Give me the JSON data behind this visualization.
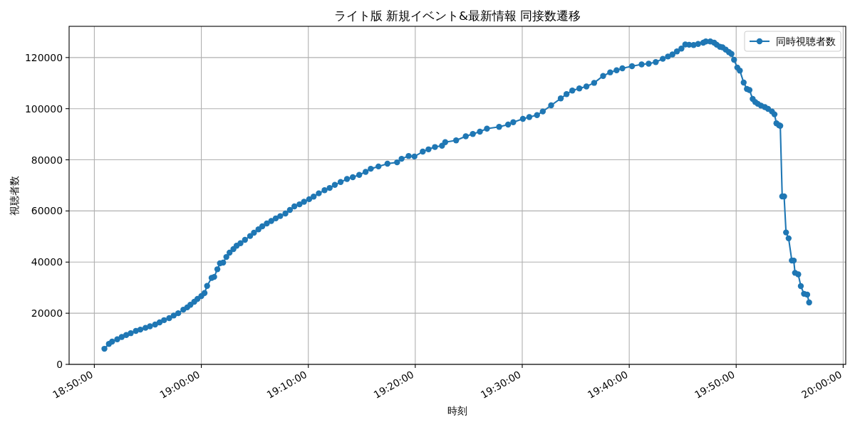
{
  "chart_data": {
    "type": "line",
    "title": "ライト版 新規イベント&最新情報 同接数遷移",
    "xlabel": "時刻",
    "ylabel": "視聴者数",
    "x": [
      18.849,
      18.856,
      18.861,
      18.869,
      18.876,
      18.883,
      18.89,
      18.898,
      18.905,
      18.913,
      18.92,
      18.928,
      18.935,
      18.942,
      18.95,
      18.957,
      18.964,
      18.972,
      18.978,
      18.983,
      18.989,
      18.994,
      19.0,
      19.005,
      19.009,
      19.016,
      19.02,
      19.025,
      19.029,
      19.034,
      19.039,
      19.044,
      19.05,
      19.055,
      19.061,
      19.068,
      19.076,
      19.082,
      19.089,
      19.095,
      19.102,
      19.109,
      19.116,
      19.123,
      19.131,
      19.138,
      19.145,
      19.153,
      19.16,
      19.168,
      19.175,
      19.183,
      19.192,
      19.2,
      19.208,
      19.217,
      19.227,
      19.236,
      19.246,
      19.256,
      19.264,
      19.276,
      19.29,
      19.305,
      19.312,
      19.323,
      19.332,
      19.345,
      19.354,
      19.364,
      19.375,
      19.38,
      19.397,
      19.412,
      19.423,
      19.434,
      19.445,
      19.464,
      19.478,
      19.486,
      19.501,
      19.511,
      19.523,
      19.532,
      19.545,
      19.56,
      19.569,
      19.578,
      19.589,
      19.6,
      19.612,
      19.626,
      19.637,
      19.647,
      19.656,
      19.671,
      19.686,
      19.697,
      19.708,
      19.719,
      19.727,
      19.734,
      19.741,
      19.748,
      19.754,
      19.76,
      19.767,
      19.774,
      19.782,
      19.786,
      19.793,
      19.799,
      19.803,
      19.808,
      19.812,
      19.817,
      19.822,
      19.826,
      19.83,
      19.835,
      19.839,
      19.845,
      19.85,
      19.854,
      19.859,
      19.863,
      19.867,
      19.872,
      19.878,
      19.883,
      19.889,
      19.893,
      19.896,
      19.9,
      19.902,
      19.905,
      19.908,
      19.911,
      19.915,
      19.92,
      19.923,
      19.925,
      19.93,
      19.934,
      19.939,
      19.944,
      19.947
    ],
    "series": [
      {
        "name": "同時視聴者数",
        "color": "#1f77b4",
        "values": [
          6100,
          8000,
          8900,
          9800,
          10700,
          11500,
          12200,
          13100,
          13600,
          14300,
          14900,
          15600,
          16400,
          17300,
          18100,
          19100,
          20000,
          21400,
          22300,
          23300,
          24500,
          25600,
          26700,
          27900,
          30700,
          33800,
          34200,
          37200,
          39500,
          39800,
          42000,
          43700,
          45100,
          46400,
          47400,
          48700,
          50200,
          51500,
          52800,
          54000,
          55100,
          56100,
          57100,
          58000,
          59000,
          60400,
          61800,
          62600,
          63600,
          64600,
          65600,
          66900,
          68100,
          69000,
          70200,
          71300,
          72500,
          73200,
          74100,
          75300,
          76500,
          77400,
          78500,
          79000,
          80400,
          81500,
          81300,
          83200,
          84100,
          85000,
          85500,
          86900,
          87600,
          89200,
          90100,
          91000,
          92200,
          92900,
          93800,
          94700,
          96000,
          96700,
          97500,
          98900,
          101300,
          104000,
          105700,
          107100,
          107900,
          108700,
          110100,
          112800,
          114200,
          115000,
          115800,
          116600,
          117300,
          117600,
          118200,
          119500,
          120400,
          121200,
          122400,
          123500,
          125100,
          125000,
          124900,
          125300,
          125800,
          126300,
          126300,
          125800,
          125000,
          124200,
          124000,
          123100,
          122100,
          121400,
          119100,
          116100,
          114900,
          110200,
          107700,
          107300,
          103800,
          102600,
          101900,
          101200,
          100600,
          99900,
          98900,
          97800,
          94300,
          93500,
          93300,
          65700,
          65700,
          51600,
          49300,
          40600,
          40600,
          35800,
          35200,
          30600,
          27600,
          27300,
          24200
        ]
      }
    ],
    "xlim": [
      18.794,
      20.004
    ],
    "xticks": [
      {
        "value": 18.8333,
        "label": "18:50:00"
      },
      {
        "value": 19.0,
        "label": "19:00:00"
      },
      {
        "value": 19.1667,
        "label": "19:10:00"
      },
      {
        "value": 19.3333,
        "label": "19:20:00"
      },
      {
        "value": 19.5,
        "label": "19:30:00"
      },
      {
        "value": 19.6667,
        "label": "19:40:00"
      },
      {
        "value": 19.8333,
        "label": "19:50:00"
      },
      {
        "value": 20.0,
        "label": "20:00:00"
      }
    ],
    "ylim": [
      0,
      132200
    ],
    "yticks": [
      0,
      20000,
      40000,
      60000,
      80000,
      100000,
      120000
    ],
    "grid": true,
    "legend": "top right",
    "marker": "circle",
    "line_style": "solid"
  }
}
